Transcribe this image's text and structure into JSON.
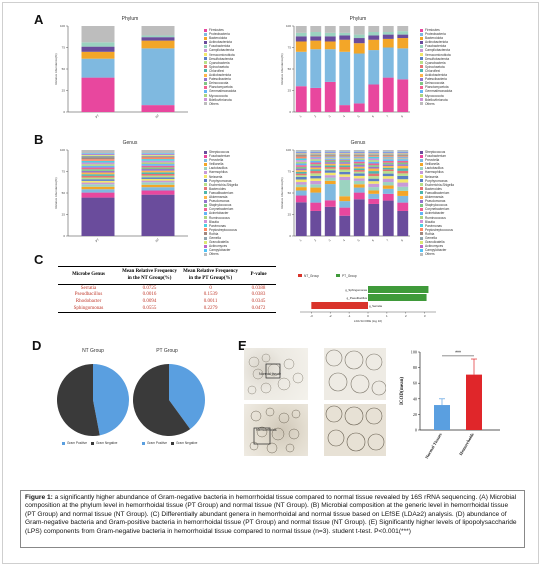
{
  "figure": {
    "panel_labels": {
      "a": "A",
      "b": "B",
      "c": "C",
      "d": "D",
      "e": "E"
    },
    "caption_bold": "Figure 1:",
    "caption_text": " a significantly higher abundance of Gram-negative bacteria in hemorrhoidal tissue compared to normal tissue revealed by 16S rRNA sequencing. (A) Microbial composition at the phylum level in hemorrhoidal tissue (PT Group) and normal tissue (NT Group). (B) Microbial composition at the generic level in hemorrhoidal tissue (PT Group) and normal tissue (NT Group). (C) Differentially abundant genera in hemorrhoidal and normal tissue based on LEfSE (LDA≥2) analysis. (D) abundance of Gram-negative bacteria and Gram-positive bacteria in hemorrhoidal tissue (PT Group) and normal tissue (NT Group). (E) Significantly higher levels of lipopolysaccharide (LPS) components from Gram-negative bacteria in hemorrhoidal tissue compared to normal tissue (n=3). student t-test. P<0.001(***)"
  },
  "colors": {
    "magenta": "#e8479e",
    "skyblue": "#7fb9e0",
    "orange": "#f3a628",
    "purple": "#6a4c9c",
    "red": "#d9342b",
    "green": "#3f9a3a",
    "gray": "#3a3a3a",
    "bar_blue": "#5a9fe0",
    "bar_red": "#e0262a"
  },
  "panelA": {
    "left_title": "Phylum",
    "right_title": "Phylum",
    "ylabel": "Relative Abundance(%)",
    "groups": [
      "PT",
      "NT"
    ],
    "samples": [
      "1",
      "2",
      "3",
      "4",
      "5",
      "6",
      "7",
      "8"
    ],
    "legend": [
      "Firmicutes",
      "Proteobacteria",
      "Bacteroidota",
      "Actinobacteriota",
      "Fusobacteriota",
      "Campilobacterota",
      "Verrucomicrobiota",
      "Desulfobacterota",
      "Cyanobacteria",
      "Spirochaetota",
      "Chloroflexi",
      "Acidobacteriota",
      "Patescibacteria",
      "Deinococcota",
      "Planctomycetota",
      "Gemmatimonadota",
      "Myxococcota",
      "Bdellovibrionota",
      "Others"
    ],
    "legend_colors": [
      "#e8479e",
      "#7fb9e0",
      "#f3a628",
      "#6a4c9c",
      "#9bd3c0",
      "#c89ad8",
      "#f2e86b",
      "#5b7fc4",
      "#b8e08a",
      "#e57373",
      "#4db6ac",
      "#ffb74d",
      "#9575cd",
      "#81c784",
      "#f06292",
      "#64b5f6",
      "#aed581",
      "#ce93d8",
      "#bdbdbd"
    ],
    "chart_data": {
      "type": "bar",
      "title": "Phylum",
      "categories": [
        "PT",
        "NT"
      ],
      "ylim": [
        0,
        100
      ],
      "series": [
        {
          "name": "Firmicutes",
          "values": [
            40,
            8
          ]
        },
        {
          "name": "Proteobacteria",
          "values": [
            22,
            66
          ]
        },
        {
          "name": "Bacteroidota",
          "values": [
            8,
            9
          ]
        },
        {
          "name": "Actinobacteriota",
          "values": [
            6,
            4
          ]
        },
        {
          "name": "Fusobacteriota",
          "values": [
            5,
            2
          ]
        },
        {
          "name": "Others",
          "values": [
            19,
            11
          ]
        }
      ]
    }
  },
  "panelB": {
    "left_title": "Genus",
    "right_title": "Genus",
    "ylabel": "Relative Abundance(%)",
    "legend": [
      "Streptococcus",
      "Fusobacterium",
      "Prevotella",
      "Veillonella",
      "Lactobacillus",
      "Haemophilus",
      "Neisseria",
      "Porphyromonas",
      "Escherichia-Shigella",
      "Bacteroides",
      "Faecalibacterium",
      "Akkermansia",
      "Pseudomonas",
      "Staphylococcus",
      "Corynebacterium",
      "Acinetobacter",
      "Ruminococcus",
      "Blautia",
      "Parvimonas",
      "Peptostreptococcus",
      "Rothia",
      "Gemella",
      "Granulicatella",
      "Actinomyces",
      "Campylobacter",
      "Others"
    ],
    "legend_colors": [
      "#6a4c9c",
      "#e8479e",
      "#7fb9e0",
      "#f3a628",
      "#9bd3c0",
      "#c89ad8",
      "#f2e86b",
      "#5b7fc4",
      "#b8e08a",
      "#e57373",
      "#4db6ac",
      "#ffb74d",
      "#9575cd",
      "#81c784",
      "#f06292",
      "#64b5f6",
      "#aed581",
      "#ce93d8",
      "#4dd0e1",
      "#ff8a65",
      "#a1887f",
      "#90a4ae",
      "#dce775",
      "#ba68c8",
      "#4fc3f7",
      "#bdbdbd"
    ]
  },
  "panelC": {
    "headers": [
      "Microbe Genus",
      "Mean Relative Frequency in the NT Group(%)",
      "Mean Relative Frequency in the PT Group(%)",
      "P-value"
    ],
    "rows": [
      [
        "Serratia",
        "0.0725",
        "0",
        "0.0388"
      ],
      [
        "Pseudbacillus",
        "0.0016",
        "0.1539",
        "0.0383"
      ],
      [
        "Rhodobacter",
        "0.0094",
        "0.0011",
        "0.0345"
      ],
      [
        "Sphingomonas",
        "0.0555",
        "0.2279",
        "0.0472"
      ]
    ],
    "lefse": {
      "legend": [
        "NT_Group",
        "PT_Group"
      ],
      "xlabel": "LDA SCORE (log 10)",
      "ticks": [
        "-3",
        "-2",
        "-1",
        "0",
        "1",
        "2",
        "3"
      ],
      "chart_data": {
        "type": "bar",
        "xlabel": "LDA SCORE (log 10)",
        "xlim": [
          -3.6,
          3.6
        ],
        "categories": [
          "g_Sphingomonas",
          "g_Pseudbacillus",
          "g_Serratia"
        ],
        "series": [
          {
            "name": "PT_Group",
            "values": [
              3.2,
              3.1,
              0
            ]
          },
          {
            "name": "NT_Group",
            "values": [
              0,
              0,
              -3.0
            ]
          }
        ]
      },
      "bar_labels": [
        "g_Sphingomonas",
        "g_Pseudbacillus",
        "g_Serratia"
      ]
    }
  },
  "panelD": {
    "left_title": "NT Group",
    "right_title": "PT Group",
    "legend": [
      "Gram Positive",
      "Gram Negative"
    ],
    "chart_data": [
      {
        "type": "pie",
        "title": "NT Group",
        "labels": [
          "Gram Positive",
          "Gram Negative"
        ],
        "values": [
          47,
          53
        ]
      },
      {
        "type": "pie",
        "title": "PT Group",
        "labels": [
          "Gram Positive",
          "Gram Negative"
        ],
        "values": [
          40,
          60
        ]
      }
    ]
  },
  "panelE": {
    "label_top": "Normal tissue",
    "label_bottom": "Hemorrhoids",
    "ylabel": "ICOD(mean)",
    "sig": "***",
    "yticks": [
      "0",
      "20",
      "40",
      "60",
      "80",
      "100"
    ],
    "categories": [
      "Normal Tissues",
      "Hemorrhoids"
    ],
    "chart_data": {
      "type": "bar",
      "categories": [
        "Normal Tissues",
        "Hemorrhoids"
      ],
      "values": [
        32,
        71
      ],
      "errors": [
        8,
        20
      ],
      "ylabel": "ICOD(mean)",
      "ylim": [
        0,
        100
      ]
    }
  }
}
